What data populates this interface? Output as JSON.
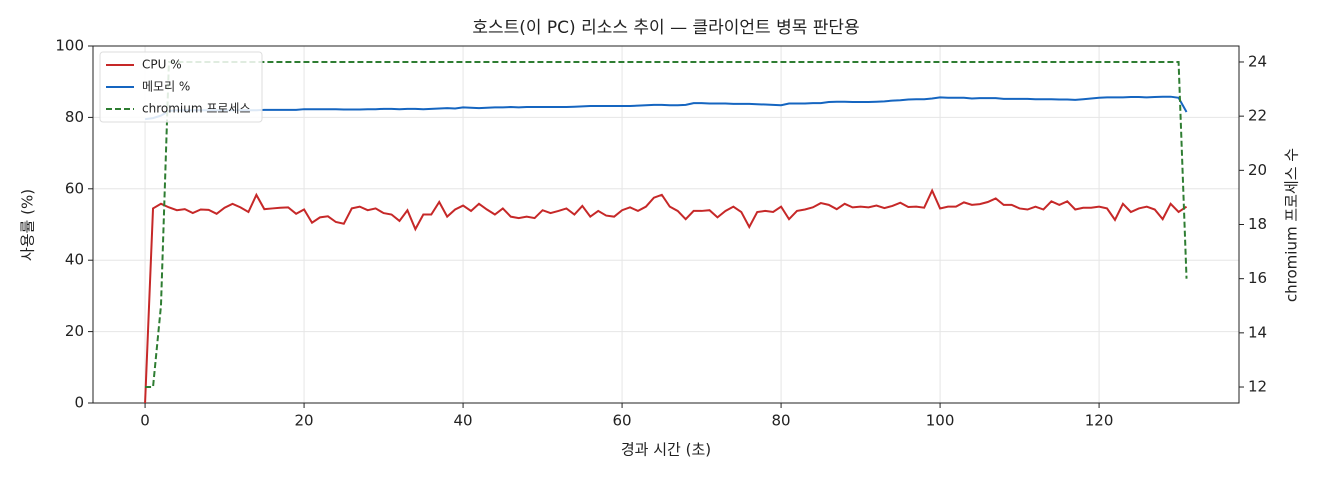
{
  "chart_data": {
    "type": "line",
    "title": "호스트(이 PC) 리소스 추이 — 클라이언트 병목 판단용",
    "x_label": "경과 시간 (초)",
    "y_label": "사용률 (%)",
    "y2_label": "chromium 프로세스 수",
    "x": [
      0,
      1,
      2,
      3,
      4,
      5,
      6,
      7,
      8,
      9,
      10,
      11,
      12,
      13,
      14,
      15,
      16,
      17,
      18,
      19,
      20,
      21,
      22,
      23,
      24,
      25,
      26,
      27,
      28,
      29,
      30,
      31,
      32,
      33,
      34,
      35,
      36,
      37,
      38,
      39,
      40,
      41,
      42,
      43,
      44,
      45,
      46,
      47,
      48,
      49,
      50,
      51,
      52,
      53,
      54,
      55,
      56,
      57,
      58,
      59,
      60,
      61,
      62,
      63,
      64,
      65,
      66,
      67,
      68,
      69,
      70,
      71,
      72,
      73,
      74,
      75,
      76,
      77,
      78,
      79,
      80,
      81,
      82,
      83,
      84,
      85,
      86,
      87,
      88,
      89,
      90,
      91,
      92,
      93,
      94,
      95,
      96,
      97,
      98,
      99,
      100,
      101,
      102,
      103,
      104,
      105,
      106,
      107,
      108,
      109,
      110,
      111,
      112,
      113,
      114,
      115,
      116,
      117,
      118,
      119,
      120,
      121,
      122,
      123,
      124,
      125,
      126,
      127,
      128,
      129,
      130,
      131
    ],
    "series": [
      {
        "name": "CPU %",
        "color": "#c62828",
        "linestyle": "solid",
        "axis": "y",
        "values": [
          0,
          54.5,
          55.8,
          54.8,
          54,
          54.3,
          53.2,
          54.2,
          54.1,
          53,
          54.7,
          55.8,
          54.8,
          53.5,
          58.3,
          54.3,
          54.5,
          54.7,
          54.8,
          53,
          54.2,
          50.5,
          52,
          52.3,
          50.7,
          50.2,
          54.5,
          55,
          54,
          54.5,
          53.2,
          52.8,
          51,
          54,
          48.7,
          52.8,
          52.8,
          56.3,
          52.2,
          54.2,
          55.3,
          53.8,
          55.8,
          54.2,
          52.8,
          54.5,
          52.2,
          51.8,
          52.2,
          51.8,
          54,
          53.2,
          53.8,
          54.5,
          52.8,
          55.2,
          52.2,
          53.8,
          52.5,
          52.2,
          54,
          54.8,
          53.8,
          55,
          57.5,
          58.3,
          55,
          53.8,
          51.5,
          53.8,
          53.8,
          54,
          52,
          53.8,
          55,
          53.5,
          49.3,
          53.5,
          53.8,
          53.5,
          55,
          51.5,
          53.8,
          54.2,
          54.8,
          56,
          55.5,
          54.3,
          55.8,
          54.8,
          55,
          54.8,
          55.3,
          54.6,
          55.2,
          56.1,
          54.9,
          55,
          54.7,
          59.5,
          54.5,
          55,
          55,
          56.2,
          55.5,
          55.7,
          56.3,
          57.3,
          55.5,
          55.5,
          54.5,
          54.2,
          55,
          54.2,
          56.5,
          55.5,
          56.5,
          54.2,
          54.7,
          54.7,
          55,
          54.5,
          51.3,
          55.8,
          53.5,
          54.5,
          55,
          54.2,
          51.5,
          55.8,
          53.5,
          55
        ]
      },
      {
        "name": "메모리 %",
        "color": "#1565c0",
        "linestyle": "solid",
        "axis": "y",
        "values": [
          79.5,
          79.8,
          80.5,
          81.8,
          82,
          82,
          82,
          82,
          82,
          82,
          82,
          82,
          82,
          82,
          82,
          82.1,
          82.1,
          82.1,
          82.1,
          82.1,
          82.3,
          82.3,
          82.3,
          82.3,
          82.3,
          82.2,
          82.2,
          82.2,
          82.3,
          82.3,
          82.4,
          82.4,
          82.3,
          82.4,
          82.4,
          82.3,
          82.4,
          82.5,
          82.6,
          82.5,
          82.8,
          82.7,
          82.6,
          82.7,
          82.8,
          82.8,
          82.9,
          82.8,
          82.9,
          82.9,
          82.9,
          82.9,
          82.9,
          82.9,
          83,
          83.1,
          83.2,
          83.2,
          83.2,
          83.2,
          83.2,
          83.2,
          83.3,
          83.4,
          83.5,
          83.5,
          83.4,
          83.4,
          83.5,
          84,
          84,
          83.9,
          83.9,
          83.9,
          83.8,
          83.8,
          83.8,
          83.7,
          83.6,
          83.5,
          83.4,
          83.9,
          83.9,
          83.9,
          84,
          84,
          84.3,
          84.4,
          84.4,
          84.3,
          84.3,
          84.3,
          84.4,
          84.5,
          84.7,
          84.8,
          85,
          85.1,
          85.1,
          85.3,
          85.6,
          85.5,
          85.5,
          85.5,
          85.3,
          85.4,
          85.4,
          85.4,
          85.2,
          85.2,
          85.2,
          85.2,
          85.1,
          85.1,
          85.1,
          85,
          85,
          84.9,
          85.1,
          85.3,
          85.5,
          85.6,
          85.6,
          85.6,
          85.7,
          85.7,
          85.6,
          85.7,
          85.8,
          85.8,
          85.5,
          81.5
        ]
      },
      {
        "name": "chromium 프로세스",
        "color": "#2e7d32",
        "linestyle": "dashed",
        "axis": "y2",
        "values": [
          12,
          12,
          15,
          24,
          24,
          24,
          24,
          24,
          24,
          24,
          24,
          24,
          24,
          24,
          24,
          24,
          24,
          24,
          24,
          24,
          24,
          24,
          24,
          24,
          24,
          24,
          24,
          24,
          24,
          24,
          24,
          24,
          24,
          24,
          24,
          24,
          24,
          24,
          24,
          24,
          24,
          24,
          24,
          24,
          24,
          24,
          24,
          24,
          24,
          24,
          24,
          24,
          24,
          24,
          24,
          24,
          24,
          24,
          24,
          24,
          24,
          24,
          24,
          24,
          24,
          24,
          24,
          24,
          24,
          24,
          24,
          24,
          24,
          24,
          24,
          24,
          24,
          24,
          24,
          24,
          24,
          24,
          24,
          24,
          24,
          24,
          24,
          24,
          24,
          24,
          24,
          24,
          24,
          24,
          24,
          24,
          24,
          24,
          24,
          24,
          24,
          24,
          24,
          24,
          24,
          24,
          24,
          24,
          24,
          24,
          24,
          24,
          24,
          24,
          24,
          24,
          24,
          24,
          24,
          24,
          24,
          24,
          24,
          24,
          24,
          24,
          24,
          24,
          24,
          24,
          24,
          16
        ]
      }
    ],
    "xlim": [
      -6.55,
      137.6
    ],
    "xticks": [
      0,
      20,
      40,
      60,
      80,
      100,
      120
    ],
    "ylim": [
      0,
      100
    ],
    "yticks": [
      0,
      20,
      40,
      60,
      80,
      100
    ],
    "y2lim": [
      11.41,
      24.59
    ],
    "y2ticks": [
      12,
      14,
      16,
      18,
      20,
      22,
      24
    ],
    "grid": true,
    "legend": "upper left"
  }
}
